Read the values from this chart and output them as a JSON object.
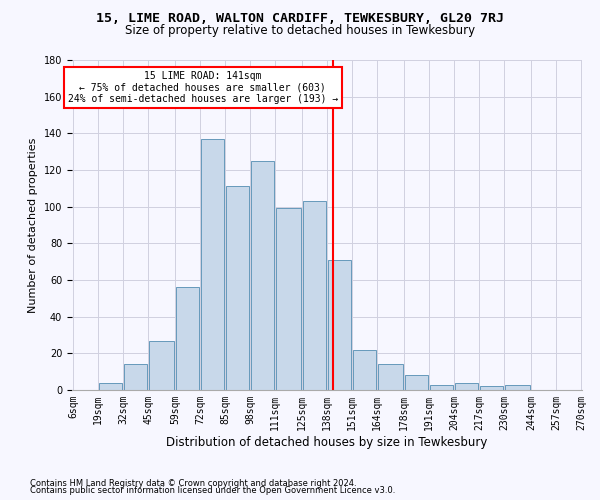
{
  "title": "15, LIME ROAD, WALTON CARDIFF, TEWKESBURY, GL20 7RJ",
  "subtitle": "Size of property relative to detached houses in Tewkesbury",
  "xlabel": "Distribution of detached houses by size in Tewkesbury",
  "ylabel": "Number of detached properties",
  "bar_color": "#c8d8ea",
  "bar_edge_color": "#6699bb",
  "vline_x": 141,
  "vline_color": "red",
  "annotation_text_line1": "15 LIME ROAD: 141sqm",
  "annotation_text_line2": "← 75% of detached houses are smaller (603)",
  "annotation_text_line3": "24% of semi-detached houses are larger (193) →",
  "footer_line1": "Contains HM Land Registry data © Crown copyright and database right 2024.",
  "footer_line2": "Contains public sector information licensed under the Open Government Licence v3.0.",
  "bin_edges": [
    6,
    19,
    32,
    45,
    59,
    72,
    85,
    98,
    111,
    125,
    138,
    151,
    164,
    178,
    191,
    204,
    217,
    230,
    244,
    257,
    270
  ],
  "bin_labels": [
    "6sqm",
    "19sqm",
    "32sqm",
    "45sqm",
    "59sqm",
    "72sqm",
    "85sqm",
    "98sqm",
    "111sqm",
    "125sqm",
    "138sqm",
    "151sqm",
    "164sqm",
    "178sqm",
    "191sqm",
    "204sqm",
    "217sqm",
    "230sqm",
    "244sqm",
    "257sqm",
    "270sqm"
  ],
  "counts": [
    0,
    4,
    14,
    27,
    56,
    137,
    111,
    125,
    99,
    103,
    71,
    22,
    14,
    8,
    3,
    4,
    2,
    3,
    0,
    0
  ],
  "ylim": [
    0,
    180
  ],
  "yticks": [
    0,
    20,
    40,
    60,
    80,
    100,
    120,
    140,
    160,
    180
  ],
  "background_color": "#f7f7ff",
  "grid_color": "#d0d0e0",
  "title_fontsize": 9.5,
  "subtitle_fontsize": 8.5,
  "ylabel_fontsize": 8,
  "xlabel_fontsize": 8.5,
  "tick_fontsize": 7,
  "annot_fontsize": 7,
  "footer_fontsize": 6
}
